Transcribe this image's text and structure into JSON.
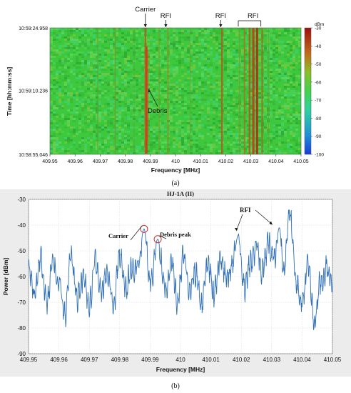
{
  "chart_data": [
    {
      "type": "heatmap",
      "panel_label": "(a)",
      "title": "",
      "xlabel": "Frequency [MHz]",
      "ylabel": "Time [hh:mm:ss]",
      "x_range": [
        409.95,
        410.05
      ],
      "x_ticks": [
        "409.95",
        "409.96",
        "409.97",
        "409.98",
        "409.99",
        "410",
        "410.01",
        "410.02",
        "410.03",
        "410.04",
        "410.05"
      ],
      "y_tick_labels": [
        "10:59:24.958",
        "10:59:10.236",
        "10:58:55.046"
      ],
      "colorbar": {
        "unit": "dBm",
        "range": [
          -100,
          -30
        ],
        "ticks": [
          "-30",
          "-40",
          "-50",
          "-60",
          "-70",
          "-80",
          "-90",
          "-100"
        ]
      },
      "features": [
        {
          "name": "Carrier",
          "frequency": 409.988
        },
        {
          "name": "RFI",
          "frequency": 409.995
        },
        {
          "name": "RFI",
          "frequency": 410.018
        },
        {
          "name": "RFI",
          "frequency": 410.03
        },
        {
          "name": "Debris",
          "frequency": 409.9885
        }
      ],
      "annotations": [
        "Carrier",
        "RFI",
        "RFI",
        "RFI",
        "Debris"
      ]
    },
    {
      "type": "line",
      "panel_label": "(b)",
      "title": "HJ-1A (II)",
      "xlabel": "Frequency [MHz]",
      "ylabel": "Power [dBm]",
      "xlim": [
        409.95,
        410.05
      ],
      "ylim": [
        -90,
        -30
      ],
      "x_ticks": [
        "409.95",
        "409.96",
        "409.97",
        "409.98",
        "409.99",
        "410",
        "410.01",
        "410.02",
        "410.03",
        "410.04",
        "410.05"
      ],
      "y_ticks": [
        "-30",
        "-40",
        "-50",
        "-60",
        "-70",
        "-80",
        "-90"
      ],
      "grid": true,
      "series": [
        {
          "color": "#2f6fb6",
          "x": [
            409.95,
            409.952,
            409.954,
            409.956,
            409.958,
            409.96,
            409.962,
            409.964,
            409.966,
            409.968,
            409.97,
            409.972,
            409.974,
            409.976,
            409.978,
            409.98,
            409.982,
            409.984,
            409.986,
            409.988,
            409.99,
            409.9925,
            409.995,
            409.997,
            409.999,
            410.001,
            410.003,
            410.005,
            410.007,
            410.009,
            410.011,
            410.013,
            410.015,
            410.017,
            410.019,
            410.021,
            410.023,
            410.025,
            410.027,
            410.029,
            410.031,
            410.0325,
            410.034,
            410.036,
            410.038,
            410.04,
            410.042,
            410.044,
            410.046,
            410.048,
            410.05
          ],
          "y": [
            -58,
            -65,
            -52,
            -70,
            -55,
            -62,
            -75,
            -53,
            -68,
            -60,
            -72,
            -55,
            -66,
            -58,
            -70,
            -52,
            -64,
            -57,
            -55,
            -41.5,
            -62,
            -45.5,
            -66,
            -55,
            -70,
            -52,
            -65,
            -58,
            -71,
            -54,
            -67,
            -53,
            -60,
            -56,
            -44,
            -64,
            -55,
            -49,
            -58,
            -48,
            -52,
            -41,
            -58,
            -35,
            -62,
            -70,
            -55,
            -78,
            -63,
            -57,
            -62
          ]
        }
      ],
      "annotations": [
        "Carrier",
        "Debris peak",
        "RFI"
      ]
    }
  ]
}
